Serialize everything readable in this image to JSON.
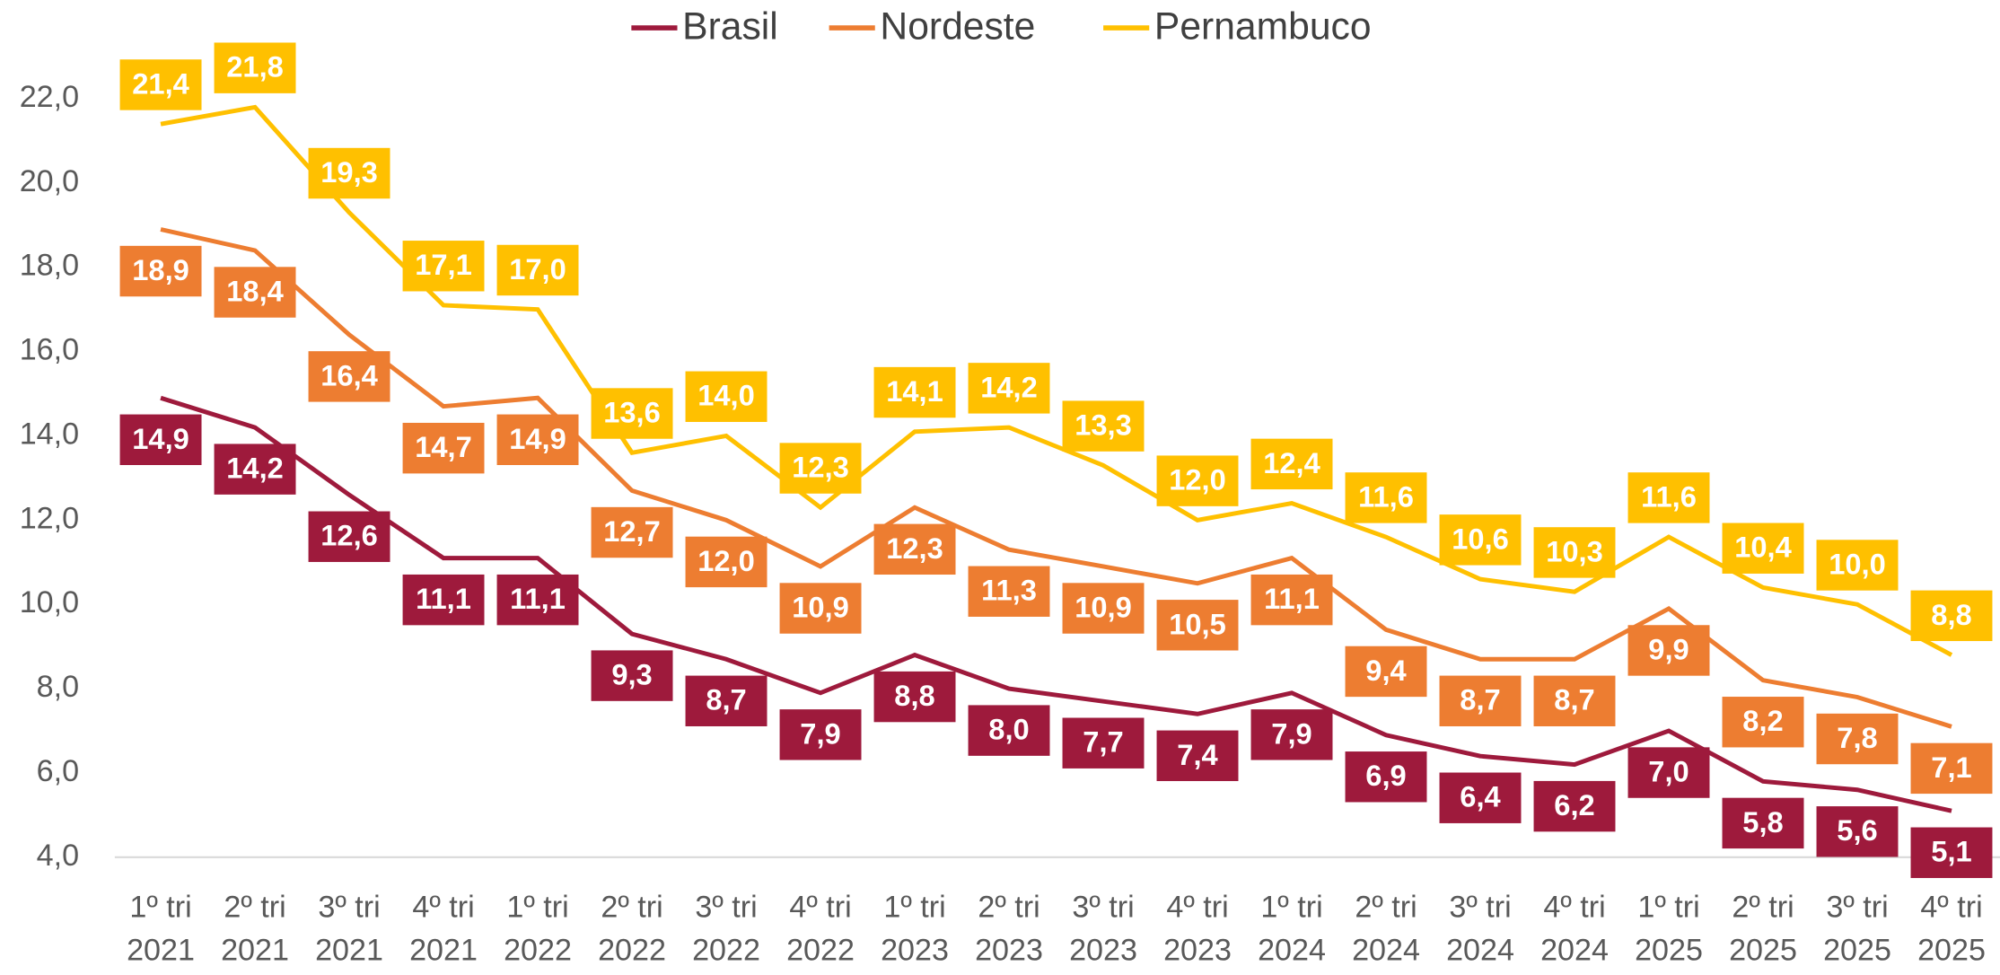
{
  "chart_data": {
    "type": "line",
    "categories": [
      "1º tri 2021",
      "2º tri 2021",
      "3º tri 2021",
      "4º tri 2021",
      "1º tri 2022",
      "2º tri 2022",
      "3º tri 2022",
      "4º tri 2022",
      "1º tri 2023",
      "2º tri 2023",
      "3º tri 2023",
      "4º tri 2023",
      "1º tri 2024",
      "2º tri 2024",
      "3º tri 2024",
      "4º tri 2024",
      "1º tri 2025",
      "2º tri 2025",
      "3º tri 2025",
      "4º tri 2025"
    ],
    "series": [
      {
        "name": "Brasil",
        "color": "#9e1a3c",
        "values": [
          14.9,
          14.2,
          12.6,
          11.1,
          11.1,
          9.3,
          8.7,
          7.9,
          8.8,
          8.0,
          7.7,
          7.4,
          7.9,
          6.9,
          6.4,
          6.2,
          7.0,
          5.8,
          5.6,
          5.1
        ],
        "value_labels": [
          "14,9",
          "14,2",
          "12,6",
          "11,1",
          "11,1",
          "9,3",
          "8,7",
          "7,9",
          "8,8",
          "8,0",
          "7,7",
          "7,4",
          "7,9",
          "6,9",
          "6,4",
          "6,2",
          "7,0",
          "5,8",
          "5,6",
          "5,1"
        ]
      },
      {
        "name": "Nordeste",
        "color": "#ed7d31",
        "values": [
          18.9,
          18.4,
          16.4,
          14.7,
          14.9,
          12.7,
          12.0,
          10.9,
          12.3,
          11.3,
          10.9,
          10.5,
          11.1,
          9.4,
          8.7,
          8.7,
          9.9,
          8.2,
          7.8,
          7.1
        ],
        "value_labels": [
          "18,9",
          "18,4",
          "16,4",
          "14,7",
          "14,9",
          "12,7",
          "12,0",
          "10,9",
          "12,3",
          "11,3",
          "10,9",
          "10,5",
          "11,1",
          "9,4",
          "8,7",
          "8,7",
          "9,9",
          "8,2",
          "7,8",
          "7,1"
        ]
      },
      {
        "name": "Pernambuco",
        "color": "#ffc000",
        "values": [
          21.4,
          21.8,
          19.3,
          17.1,
          17.0,
          13.6,
          14.0,
          12.3,
          14.1,
          14.2,
          13.3,
          12.0,
          12.4,
          11.6,
          10.6,
          10.3,
          11.6,
          10.4,
          10.0,
          8.8
        ],
        "value_labels": [
          "21,4",
          "21,8",
          "19,3",
          "17,1",
          "17,0",
          "13,6",
          "14,0",
          "12,3",
          "14,1",
          "14,2",
          "13,3",
          "12,0",
          "12,4",
          "11,6",
          "10,6",
          "10,3",
          "11,6",
          "10,4",
          "10,0",
          "8,8"
        ]
      }
    ],
    "ylim": [
      4,
      22
    ],
    "yticks": [
      {
        "value": 4,
        "label": "4,0"
      },
      {
        "value": 6,
        "label": "6,0"
      },
      {
        "value": 8,
        "label": "8,0"
      },
      {
        "value": 10,
        "label": "10,0"
      },
      {
        "value": 12,
        "label": "12,0"
      },
      {
        "value": 14,
        "label": "14,0"
      },
      {
        "value": 16,
        "label": "16,0"
      },
      {
        "value": 18,
        "label": "18,0"
      },
      {
        "value": 20,
        "label": "20,0"
      },
      {
        "value": 22,
        "label": "22,0"
      }
    ],
    "grid": false,
    "legend": "top"
  }
}
